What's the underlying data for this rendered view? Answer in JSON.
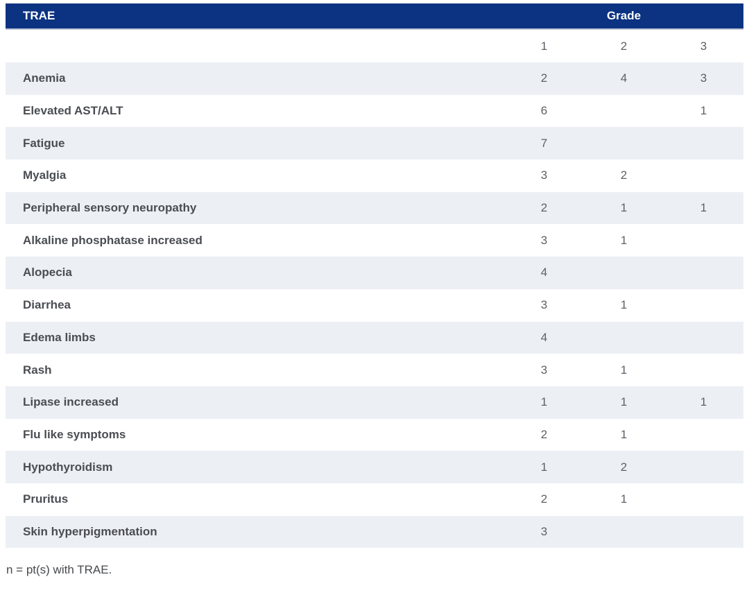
{
  "table": {
    "header": {
      "trae_label": "TRAE",
      "grade_label": "Grade"
    },
    "grade_columns": [
      "1",
      "2",
      "3"
    ],
    "rows": [
      {
        "label": "Anemia",
        "g1": "2",
        "g2": "4",
        "g3": "3"
      },
      {
        "label": "Elevated AST/ALT",
        "g1": "6",
        "g2": "",
        "g3": "1"
      },
      {
        "label": "Fatigue",
        "g1": "7",
        "g2": "",
        "g3": ""
      },
      {
        "label": "Myalgia",
        "g1": "3",
        "g2": "2",
        "g3": ""
      },
      {
        "label": "Peripheral sensory neuropathy",
        "g1": "2",
        "g2": "1",
        "g3": "1"
      },
      {
        "label": "Alkaline phosphatase increased",
        "g1": "3",
        "g2": "1",
        "g3": ""
      },
      {
        "label": "Alopecia",
        "g1": "4",
        "g2": "",
        "g3": ""
      },
      {
        "label": "Diarrhea",
        "g1": "3",
        "g2": "1",
        "g3": ""
      },
      {
        "label": "Edema limbs",
        "g1": "4",
        "g2": "",
        "g3": ""
      },
      {
        "label": "Rash",
        "g1": "3",
        "g2": "1",
        "g3": ""
      },
      {
        "label": "Lipase increased",
        "g1": "1",
        "g2": "1",
        "g3": "1"
      },
      {
        "label": "Flu like symptoms",
        "g1": "2",
        "g2": "1",
        "g3": ""
      },
      {
        "label": "Hypothyroidism",
        "g1": "1",
        "g2": "2",
        "g3": ""
      },
      {
        "label": "Pruritus",
        "g1": "2",
        "g2": "1",
        "g3": ""
      },
      {
        "label": "Skin hyperpigmentation",
        "g1": "3",
        "g2": "",
        "g3": ""
      }
    ],
    "footnote": "n = pt(s) with TRAE."
  },
  "colors": {
    "header_bg": "#0b3381",
    "header_border": "#bdc3d3",
    "alt_row_bg": "#eceff4",
    "label_text": "#4a4d52",
    "value_text": "#5d6166",
    "footnote_text": "#46494d"
  }
}
